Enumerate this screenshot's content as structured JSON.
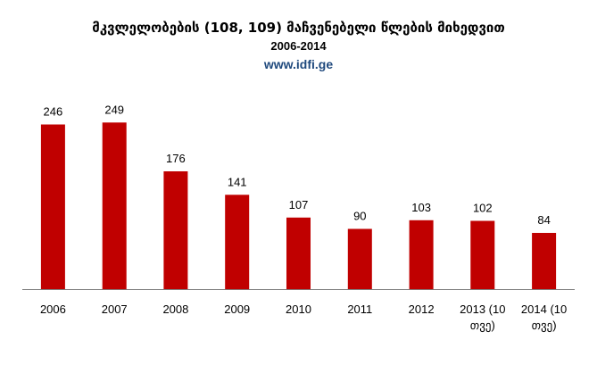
{
  "header": {
    "title": "მკვლელობების (108, 109)  მაჩვენებელი წლების მიხედვით",
    "subtitle": "2006-2014",
    "site": "www.idfi.ge"
  },
  "colors": {
    "bar": "#c00000",
    "axis": "#7f7f7f",
    "site_link": "#1f497d"
  },
  "chart_data": {
    "type": "bar",
    "title": "მკვლელობების (108, 109)  მაჩვენებელი წლების მიხედვით",
    "subtitle": "2006-2014",
    "categories": [
      [
        "2006"
      ],
      [
        "2007"
      ],
      [
        "2008"
      ],
      [
        "2009"
      ],
      [
        "2010"
      ],
      [
        "2011"
      ],
      [
        "2012"
      ],
      [
        "2013 (10",
        "თვე)"
      ],
      [
        "2014 (10",
        "თვე)"
      ]
    ],
    "values": [
      246,
      249,
      176,
      141,
      107,
      90,
      103,
      102,
      84
    ],
    "data_labels": true,
    "ylim": [
      0,
      300
    ],
    "grid": false,
    "legend": "none"
  }
}
